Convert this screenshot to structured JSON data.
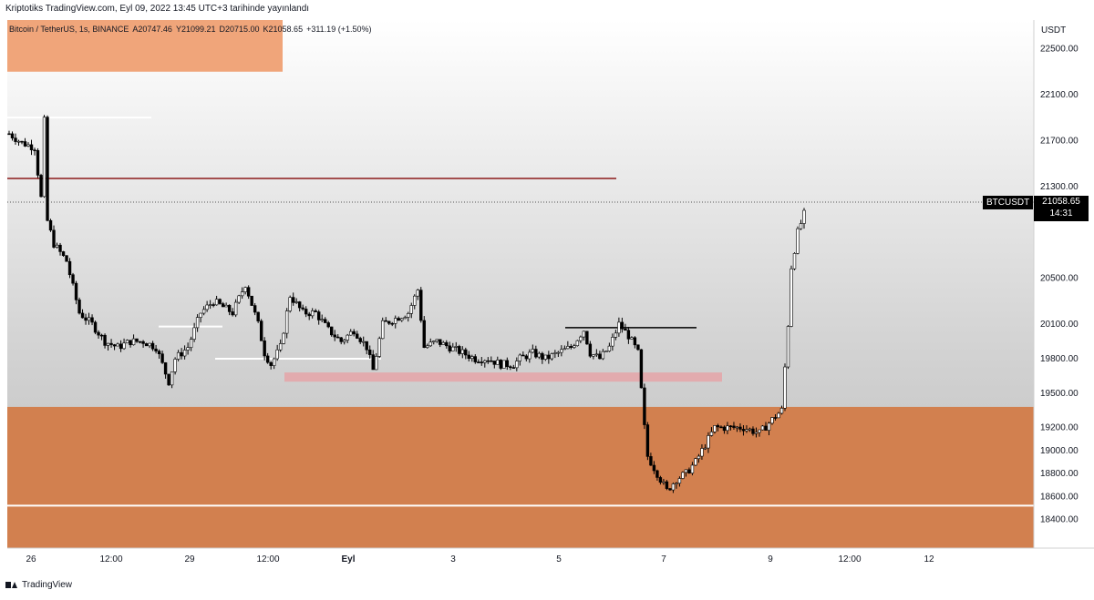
{
  "header": {
    "publish_line": "Kriptotiks TradingView.com, Eyl 09, 2022 13:45 UTC+3 tarihinde yayınlandı"
  },
  "legend": {
    "symbol": "Bitcoin / TetherUS, 1s, BINANCE",
    "open": "A20747.46",
    "high": "Y21099.21",
    "low": "D20715.00",
    "close": "K21058.65",
    "change": "+311.19 (+1.50%)"
  },
  "price_axis": {
    "currency": "USDT"
  },
  "last_price": {
    "symbol": "BTCUSDT",
    "price": "21058.65",
    "countdown": "14:31"
  },
  "footer": {
    "brand": "TradingView"
  },
  "colors": {
    "zone_orange": "#d2804f",
    "zone_orange_light": "#f0a57a",
    "zone_pink": "#e5a4a8",
    "line_darkred": "#8b1a1a",
    "candle": "#000000"
  },
  "chart_data": {
    "type": "candlestick",
    "symbol": "Bitcoin / TetherUS",
    "timeframe": "1s",
    "exchange": "BINANCE",
    "ylim": [
      18150,
      22750
    ],
    "y_ticks": [
      22500,
      22100,
      21700,
      21300,
      20500,
      20100,
      19800,
      19500,
      19200,
      19000,
      18800,
      18600,
      18400
    ],
    "y_tick_labels": [
      "22500.00",
      "22100.00",
      "21700.00",
      "21300.00",
      "20500.00",
      "20100.00",
      "19800.00",
      "19500.00",
      "19200.00",
      "19000.00",
      "18800.00",
      "18600.00",
      "18400.00"
    ],
    "x_ticks": [
      "26",
      "12:00",
      "29",
      "12:00",
      "Eyl",
      "3",
      "5",
      "7",
      "9",
      "12:00",
      "12"
    ],
    "close_path": [
      [
        0,
        21760
      ],
      [
        4,
        21680
      ],
      [
        8,
        21640
      ],
      [
        10,
        21200
      ],
      [
        11,
        21870
      ],
      [
        12,
        21000
      ],
      [
        14,
        20800
      ],
      [
        18,
        20650
      ],
      [
        22,
        20200
      ],
      [
        26,
        20100
      ],
      [
        30,
        19950
      ],
      [
        34,
        19900
      ],
      [
        38,
        19950
      ],
      [
        42,
        19950
      ],
      [
        46,
        19900
      ],
      [
        50,
        19600
      ],
      [
        52,
        19800
      ],
      [
        56,
        19900
      ],
      [
        60,
        20200
      ],
      [
        64,
        20300
      ],
      [
        70,
        20200
      ],
      [
        74,
        20450
      ],
      [
        78,
        20100
      ],
      [
        80,
        19850
      ],
      [
        82,
        19750
      ],
      [
        85,
        19900
      ],
      [
        88,
        20350
      ],
      [
        92,
        20200
      ],
      [
        96,
        20200
      ],
      [
        100,
        20050
      ],
      [
        104,
        19950
      ],
      [
        108,
        20050
      ],
      [
        112,
        19900
      ],
      [
        114,
        19700
      ],
      [
        117,
        20100
      ],
      [
        121,
        20150
      ],
      [
        125,
        20200
      ],
      [
        128,
        20400
      ],
      [
        130,
        19900
      ],
      [
        134,
        19950
      ],
      [
        138,
        19900
      ],
      [
        142,
        19850
      ],
      [
        146,
        19800
      ],
      [
        150,
        19800
      ],
      [
        154,
        19750
      ],
      [
        158,
        19750
      ],
      [
        160,
        19800
      ],
      [
        164,
        19850
      ],
      [
        168,
        19800
      ],
      [
        172,
        19850
      ],
      [
        176,
        19900
      ],
      [
        180,
        20050
      ],
      [
        182,
        19850
      ],
      [
        185,
        19800
      ],
      [
        188,
        19900
      ],
      [
        191,
        20100
      ],
      [
        194,
        20000
      ],
      [
        197,
        19850
      ],
      [
        199,
        19200
      ],
      [
        200,
        18950
      ],
      [
        203,
        18800
      ],
      [
        206,
        18650
      ],
      [
        209,
        18750
      ],
      [
        212,
        18800
      ],
      [
        215,
        18900
      ],
      [
        218,
        19050
      ],
      [
        221,
        19200
      ],
      [
        225,
        19200
      ],
      [
        230,
        19200
      ],
      [
        235,
        19150
      ],
      [
        240,
        19300
      ],
      [
        242,
        19350
      ],
      [
        244,
        20100
      ],
      [
        245,
        20600
      ],
      [
        247,
        20900
      ],
      [
        249,
        21058
      ]
    ],
    "annotations": {
      "last_price": 21058.65,
      "resistance_line": 21370,
      "white_line_upper_left": 21900,
      "white_line_mid_1": 20080,
      "white_line_mid_2": 19800,
      "black_resistance_line": 20070,
      "pink_zone": [
        19600,
        19680
      ],
      "orange_demand_zone": [
        18150,
        19380
      ],
      "orange_supply_zone_top": [
        22300,
        22750
      ],
      "white_line_lower": 18520
    }
  }
}
